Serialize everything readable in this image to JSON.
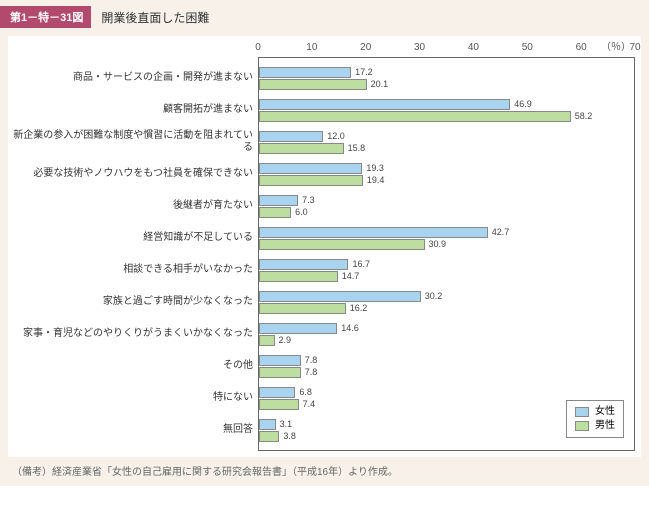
{
  "header": {
    "badge": "第1－特－31図",
    "title": "開業後直面した困難"
  },
  "chart": {
    "type": "bar",
    "unit": "（％）",
    "xlim": [
      0,
      70
    ],
    "xtick_step": 10,
    "xticks": [
      "0",
      "10",
      "20",
      "30",
      "40",
      "50",
      "60",
      "70"
    ],
    "bar_colors": {
      "female": "#a8d4ee",
      "male": "#bedda0"
    },
    "border_color": "#888888",
    "background_color": "#ffffff",
    "outer_background": "#f7f1ea",
    "label_fontsize": 10,
    "value_fontsize": 9,
    "categories": [
      {
        "label": "商品・サービスの企画・開発が進まない",
        "female": 17.2,
        "male": 20.1
      },
      {
        "label": "顧客開拓が進まない",
        "female": 46.9,
        "male": 58.2
      },
      {
        "label": "新企業の参入が困難な制度や慣習に活動を阻まれている",
        "female": 12.0,
        "male": 15.8
      },
      {
        "label": "必要な技術やノウハウをもつ社員を確保できない",
        "female": 19.3,
        "male": 19.4
      },
      {
        "label": "後継者が育たない",
        "female": 7.3,
        "male": 6.0
      },
      {
        "label": "経営知識が不足している",
        "female": 42.7,
        "male": 30.9
      },
      {
        "label": "相談できる相手がいなかった",
        "female": 16.7,
        "male": 14.7
      },
      {
        "label": "家族と過ごす時間が少なくなった",
        "female": 30.2,
        "male": 16.2
      },
      {
        "label": "家事・育児などのやりくりがうまくいかなくなった",
        "female": 14.6,
        "male": 2.9
      },
      {
        "label": "その他",
        "female": 7.8,
        "male": 7.8
      },
      {
        "label": "特にない",
        "female": 6.8,
        "male": 7.4
      },
      {
        "label": "無回答",
        "female": 3.1,
        "male": 3.8
      }
    ],
    "legend": {
      "female": "女性",
      "male": "男性"
    }
  },
  "note": "（備考）経済産業省「女性の自己雇用に関する研究会報告書」（平成16年）より作成。"
}
